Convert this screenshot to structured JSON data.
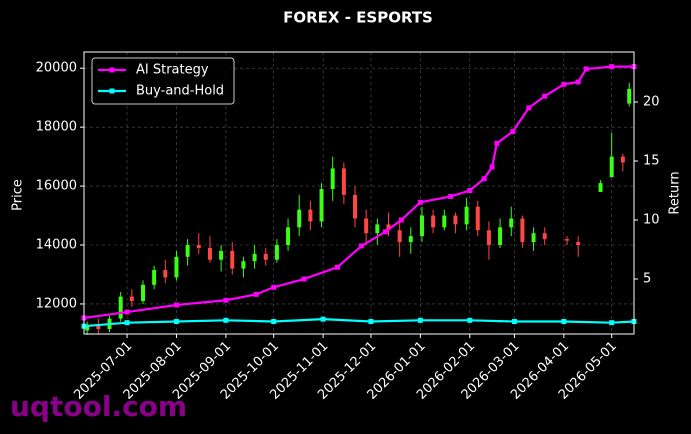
{
  "chart_data": {
    "type": "candlestick",
    "title": "FOREX - ESPORTS",
    "ylabel": "Price",
    "y2label": "Return",
    "watermark": "uqtool.com",
    "xlim": [
      "2025-06-04",
      "2026-05-15"
    ],
    "xticks": [
      "2025-07-01",
      "2025-08-01",
      "2025-09-01",
      "2025-10-01",
      "2025-11-01",
      "2025-12-01",
      "2026-01-01",
      "2026-02-01",
      "2026-03-01",
      "2026-04-01",
      "2026-05-01"
    ],
    "ylim": [
      10980,
      20550
    ],
    "yticks": [
      12000,
      14000,
      16000,
      18000,
      20000
    ],
    "y2lim": [
      0.34,
      24.24
    ],
    "y2ticks": [
      5,
      10,
      15,
      20
    ],
    "grid": true,
    "legend": "upper left",
    "up_color": "#39ff14",
    "down_color": "#ff4545",
    "candles": {
      "x": [
        "2025-06-06",
        "2025-06-13",
        "2025-06-20",
        "2025-06-27",
        "2025-07-04",
        "2025-07-11",
        "2025-07-18",
        "2025-07-25",
        "2025-08-01",
        "2025-08-08",
        "2025-08-15",
        "2025-08-22",
        "2025-08-29",
        "2025-09-05",
        "2025-09-12",
        "2025-09-19",
        "2025-09-26",
        "2025-10-03",
        "2025-10-10",
        "2025-10-17",
        "2025-10-24",
        "2025-10-31",
        "2025-11-07",
        "2025-11-14",
        "2025-11-21",
        "2025-11-28",
        "2025-12-05",
        "2025-12-12",
        "2025-12-19",
        "2025-12-26",
        "2026-01-02",
        "2026-01-09",
        "2026-01-16",
        "2026-01-23",
        "2026-01-30",
        "2026-02-06",
        "2026-02-13",
        "2026-02-20",
        "2026-02-27",
        "2026-03-06",
        "2026-03-13",
        "2026-03-20",
        "2026-04-03",
        "2026-04-10",
        "2026-04-24",
        "2026-05-01",
        "2026-05-08",
        "2026-05-12"
      ],
      "open": [
        11100,
        11250,
        11150,
        11500,
        12250,
        12100,
        12650,
        13150,
        12900,
        13600,
        14000,
        13900,
        13500,
        13800,
        13200,
        13450,
        13700,
        13500,
        14000,
        14600,
        15200,
        14800,
        15900,
        16600,
        15700,
        14900,
        14400,
        14700,
        14500,
        14100,
        14300,
        15000,
        14600,
        15000,
        14700,
        15300,
        14500,
        14000,
        14600,
        14900,
        14100,
        14400,
        14200,
        14100,
        15800,
        16300,
        17000,
        18800
      ],
      "high": [
        11400,
        11500,
        11600,
        12400,
        12500,
        12800,
        13300,
        13500,
        13800,
        14200,
        14400,
        14300,
        14000,
        14100,
        13600,
        14000,
        13900,
        14200,
        14900,
        15700,
        15500,
        16100,
        17000,
        16800,
        16000,
        15200,
        14900,
        15100,
        14900,
        14600,
        15300,
        15200,
        15200,
        15100,
        15600,
        15500,
        14800,
        14900,
        15300,
        15000,
        14600,
        14600,
        14300,
        14300,
        16200,
        17800,
        17100,
        19500
      ],
      "low": [
        10950,
        11000,
        11050,
        11400,
        11900,
        12000,
        12500,
        12700,
        12800,
        13300,
        13700,
        13400,
        13100,
        13000,
        12900,
        13200,
        13300,
        13400,
        13800,
        14300,
        14500,
        14600,
        15500,
        15400,
        14600,
        14000,
        14000,
        14300,
        13600,
        13700,
        14100,
        14400,
        14500,
        14400,
        14500,
        14300,
        13500,
        13900,
        14300,
        13900,
        13800,
        14000,
        14000,
        13600,
        15800,
        16300,
        16500,
        18700
      ],
      "close": [
        11250,
        11150,
        11500,
        12250,
        12100,
        12650,
        13150,
        12900,
        13600,
        14000,
        13900,
        13500,
        13800,
        13200,
        13450,
        13700,
        13500,
        14000,
        14600,
        15200,
        14800,
        15900,
        16600,
        15700,
        14900,
        14400,
        14700,
        14500,
        14100,
        14300,
        15000,
        14600,
        15000,
        14700,
        15300,
        14500,
        14000,
        14600,
        14900,
        14100,
        14400,
        14200,
        14150,
        14000,
        16100,
        17000,
        16800,
        19300
      ]
    },
    "series": [
      {
        "name": "AI Strategy",
        "color": "#ff00ff",
        "axis": "y2",
        "x": [
          "2025-06-04",
          "2025-07-01",
          "2025-08-01",
          "2025-09-01",
          "2025-09-20",
          "2025-10-01",
          "2025-10-20",
          "2025-11-10",
          "2025-11-25",
          "2025-12-10",
          "2025-12-20",
          "2026-01-01",
          "2026-01-20",
          "2026-02-01",
          "2026-02-10",
          "2026-02-15",
          "2026-02-18",
          "2026-02-28",
          "2026-03-10",
          "2026-03-20",
          "2026-04-01",
          "2026-04-10",
          "2026-04-15",
          "2026-05-01",
          "2026-05-15"
        ],
        "values": [
          1.7,
          2.2,
          2.8,
          3.2,
          3.7,
          4.3,
          5.0,
          6.0,
          7.8,
          9.0,
          10.0,
          11.5,
          12.0,
          12.5,
          13.5,
          14.5,
          16.5,
          17.5,
          19.5,
          20.5,
          21.5,
          21.7,
          22.8,
          23.0,
          23.0
        ]
      },
      {
        "name": "Buy-and-Hold",
        "color": "#00ffff",
        "axis": "y2",
        "x": [
          "2025-06-04",
          "2025-07-01",
          "2025-08-01",
          "2025-09-01",
          "2025-10-01",
          "2025-11-01",
          "2025-12-01",
          "2026-01-01",
          "2026-02-01",
          "2026-03-01",
          "2026-04-01",
          "2026-05-01",
          "2026-05-15"
        ],
        "values": [
          1.0,
          1.3,
          1.4,
          1.5,
          1.4,
          1.6,
          1.4,
          1.5,
          1.5,
          1.4,
          1.4,
          1.3,
          1.4
        ]
      }
    ]
  }
}
